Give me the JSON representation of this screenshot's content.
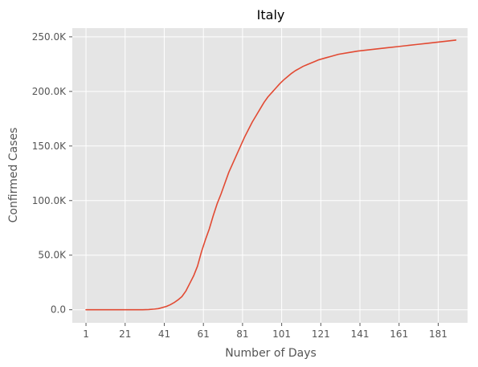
{
  "chart_data": {
    "type": "line",
    "title": "Italy",
    "xlabel": "Number of Days",
    "ylabel": "Confirmed Cases",
    "xlim": [
      -6,
      196
    ],
    "ylim": [
      -12000,
      258000
    ],
    "xticks": [
      1,
      21,
      41,
      61,
      81,
      101,
      121,
      141,
      161,
      181
    ],
    "xtick_labels": [
      "1",
      "21",
      "41",
      "61",
      "81",
      "101",
      "121",
      "141",
      "161",
      "181"
    ],
    "yticks": [
      0,
      50000,
      100000,
      150000,
      200000,
      250000
    ],
    "ytick_labels": [
      "0.0",
      "50.0K",
      "100.0K",
      "150.0K",
      "200.0K",
      "250.0K"
    ],
    "grid": true,
    "background": "#e5e5e5",
    "grid_color": "#ffffff",
    "line_color": "#e24a33",
    "series": [
      {
        "x": [
          1,
          10,
          20,
          30,
          33,
          36,
          38,
          40,
          42,
          44,
          46,
          48,
          50,
          52,
          54,
          56,
          58,
          60,
          62,
          64,
          66,
          68,
          70,
          72,
          74,
          76,
          78,
          80,
          82,
          84,
          86,
          88,
          90,
          92,
          94,
          96,
          98,
          100,
          102,
          104,
          106,
          108,
          110,
          112,
          114,
          116,
          118,
          120,
          122,
          124,
          126,
          128,
          130,
          135,
          140,
          145,
          150,
          155,
          160,
          165,
          170,
          175,
          180,
          185,
          190
        ],
        "y": [
          0,
          0,
          0,
          0,
          200,
          600,
          1000,
          2000,
          3000,
          4500,
          6500,
          9000,
          12000,
          17000,
          24000,
          31000,
          40000,
          53000,
          64000,
          74000,
          86000,
          97000,
          106000,
          116000,
          126000,
          134000,
          142000,
          150000,
          158000,
          165000,
          172000,
          178000,
          184000,
          190000,
          195000,
          199000,
          203000,
          207000,
          210500,
          213500,
          216500,
          219000,
          221000,
          223000,
          224500,
          226000,
          227500,
          229000,
          230000,
          231000,
          232000,
          233000,
          234000,
          235500,
          237000,
          238000,
          239000,
          240000,
          241000,
          242000,
          243000,
          244000,
          245000,
          246000,
          247000
        ]
      }
    ]
  }
}
